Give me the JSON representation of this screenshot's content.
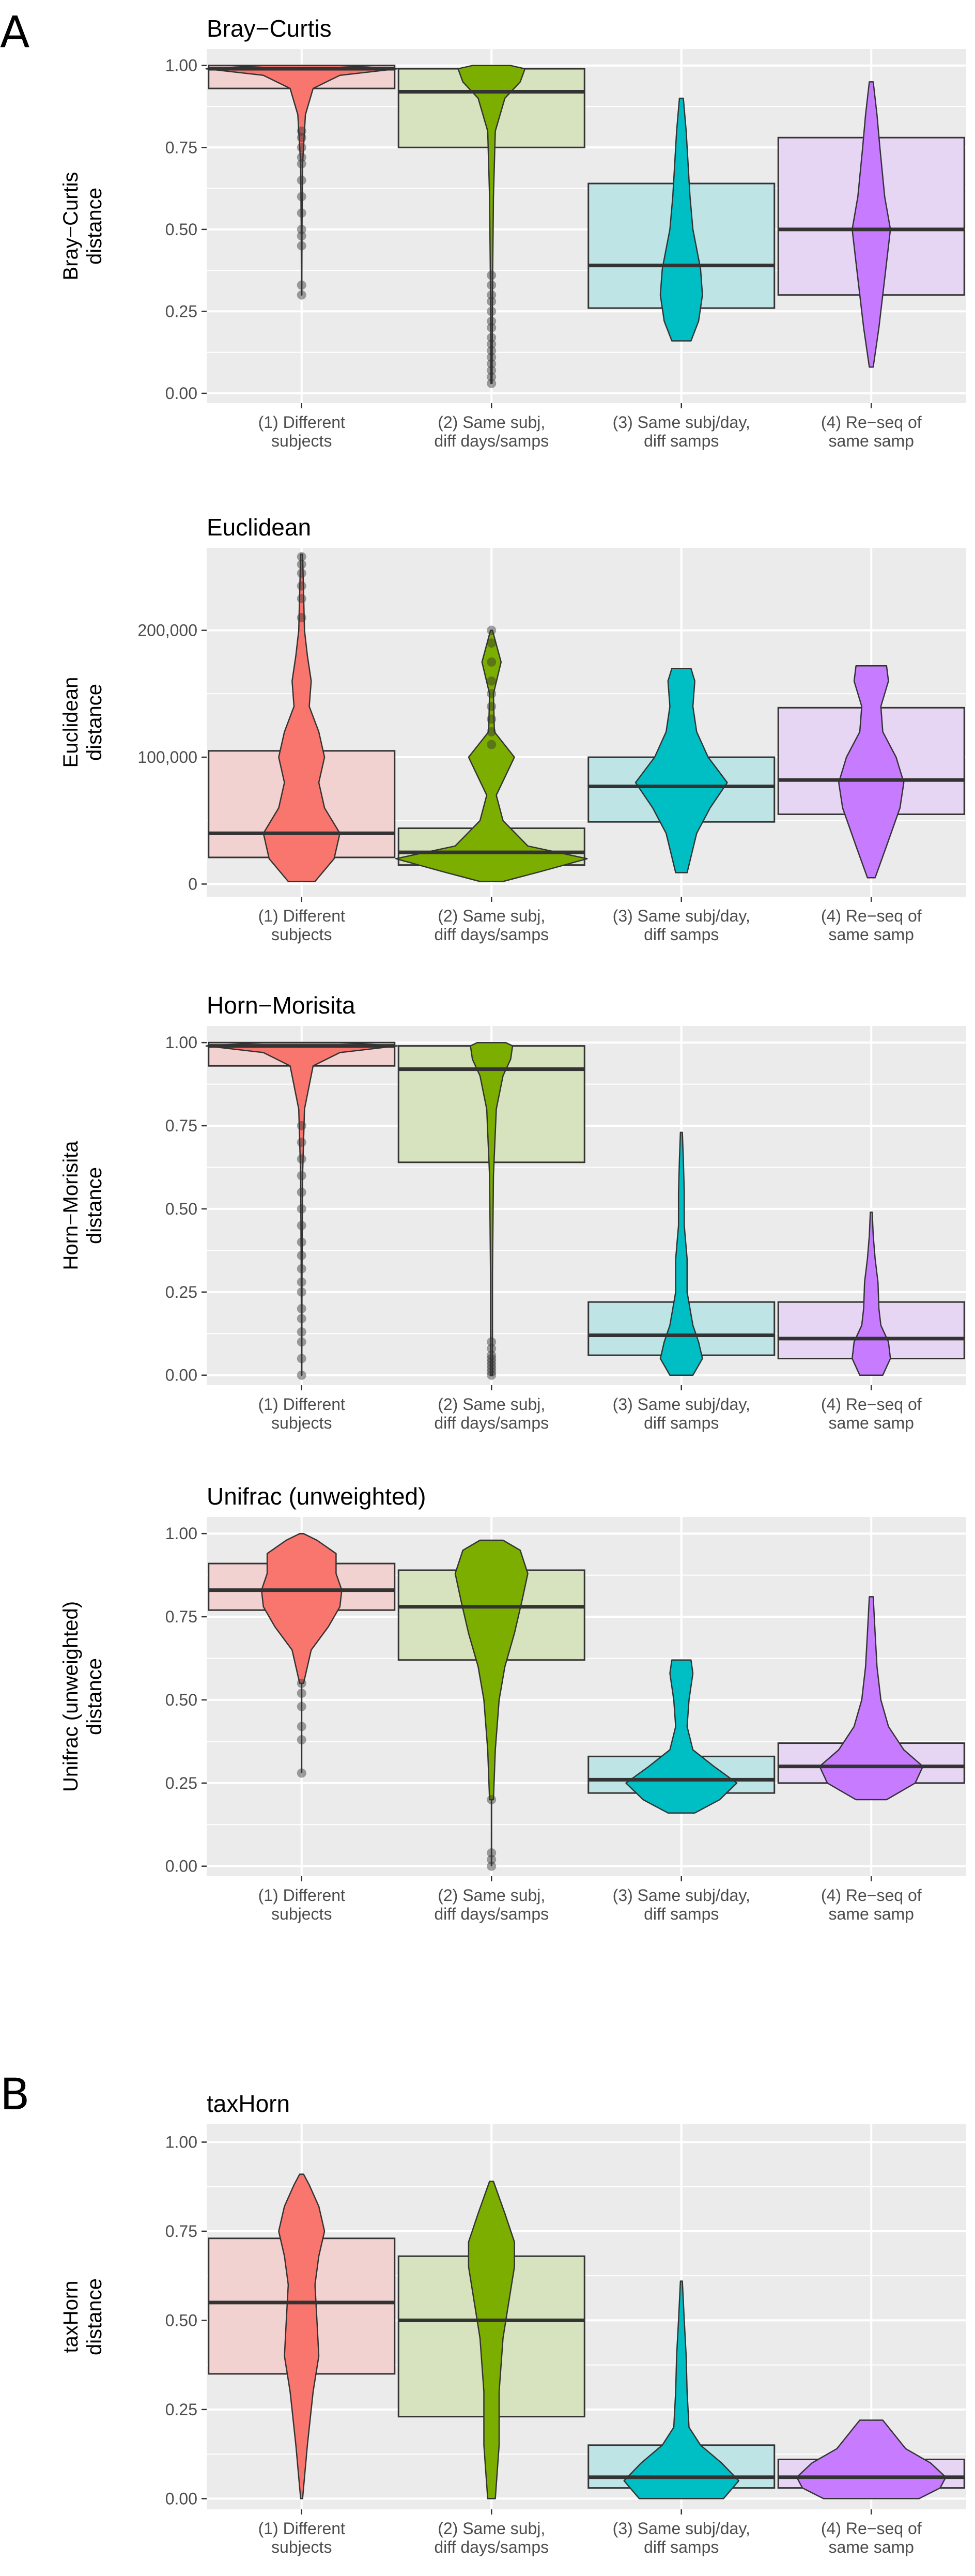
{
  "figure": {
    "panel_a_label": "A",
    "panel_b_label": "B",
    "groups": [
      "(1) Different subjects",
      "(2) Same subj, diff days/samps",
      "(3) Same subj/day, diff samps",
      "(4) Re-seq of same samp"
    ],
    "group_colors": [
      "#F8766D",
      "#7CAE00",
      "#00BFC4",
      "#C77CFF"
    ],
    "box_fill_colors": [
      "#F2D2D1",
      "#D7E2BF",
      "#BFE4E6",
      "#E6D6F3"
    ],
    "panel_background": "#EBEBEB",
    "grid_color": "#FFFFFF"
  },
  "chart_data": [
    {
      "type": "violin+box",
      "panel": "A",
      "title": "Bray−Curtis",
      "ylabel": "Bray−Curtis distance",
      "ylim": [
        -0.03,
        1.05
      ],
      "yticks": [
        0,
        0.25,
        0.5,
        0.75,
        1.0
      ],
      "yticklabels": [
        "0.00",
        "0.25",
        "0.50",
        "0.75",
        "1.00"
      ],
      "categories": [
        "(1) Different subjects",
        "(2) Same subj, diff days/samps",
        "(3) Same subj/day, diff samps",
        "(4) Re-seq of same samp"
      ],
      "boxes": [
        {
          "q1": 0.93,
          "median": 0.99,
          "q3": 1.0,
          "lo": 0.3,
          "hi": 1.0
        },
        {
          "q1": 0.75,
          "median": 0.92,
          "q3": 0.99,
          "lo": 0.03,
          "hi": 1.0
        },
        {
          "q1": 0.26,
          "median": 0.39,
          "q3": 0.64,
          "lo": 0.16,
          "hi": 0.9
        },
        {
          "q1": 0.3,
          "median": 0.5,
          "q3": 0.78,
          "lo": 0.08,
          "hi": 0.95
        }
      ],
      "violins": [
        [
          [
            0.3,
            0.002
          ],
          [
            0.5,
            0.004
          ],
          [
            0.7,
            0.01
          ],
          [
            0.85,
            0.04
          ],
          [
            0.93,
            0.12
          ],
          [
            0.97,
            0.4
          ],
          [
            0.99,
            1.0
          ],
          [
            1.0,
            0.4
          ]
        ],
        [
          [
            0.03,
            0.005
          ],
          [
            0.3,
            0.01
          ],
          [
            0.6,
            0.02
          ],
          [
            0.8,
            0.04
          ],
          [
            0.9,
            0.14
          ],
          [
            0.95,
            0.3
          ],
          [
            0.99,
            0.35
          ],
          [
            1.0,
            0.2
          ]
        ],
        [
          [
            0.16,
            0.1
          ],
          [
            0.22,
            0.18
          ],
          [
            0.3,
            0.22
          ],
          [
            0.38,
            0.2
          ],
          [
            0.5,
            0.12
          ],
          [
            0.6,
            0.09
          ],
          [
            0.7,
            0.07
          ],
          [
            0.8,
            0.05
          ],
          [
            0.9,
            0.02
          ]
        ],
        [
          [
            0.08,
            0.02
          ],
          [
            0.2,
            0.08
          ],
          [
            0.35,
            0.14
          ],
          [
            0.5,
            0.2
          ],
          [
            0.6,
            0.14
          ],
          [
            0.75,
            0.09
          ],
          [
            0.85,
            0.06
          ],
          [
            0.95,
            0.02
          ]
        ]
      ],
      "outliers": [
        [
          0.3,
          0.33,
          0.45,
          0.48,
          0.5,
          0.55,
          0.6,
          0.65,
          0.7,
          0.72,
          0.75,
          0.78,
          0.8
        ],
        [
          0.03,
          0.05,
          0.07,
          0.09,
          0.11,
          0.13,
          0.15,
          0.17,
          0.2,
          0.22,
          0.25,
          0.28,
          0.3,
          0.33,
          0.36
        ]
      ]
    },
    {
      "type": "violin+box",
      "panel": "A",
      "title": "Euclidean",
      "ylabel": "Euclidean distance",
      "ylim": [
        -10000,
        265000
      ],
      "yticks": [
        0,
        100000,
        200000
      ],
      "yticklabels": [
        "0",
        "100,000",
        "200,000"
      ],
      "categories": [
        "(1) Different subjects",
        "(2) Same subj, diff days/samps",
        "(3) Same subj/day, diff samps",
        "(4) Re-seq of same samp"
      ],
      "boxes": [
        {
          "q1": 21000,
          "median": 40000,
          "q3": 105000,
          "lo": 2000,
          "hi": 260000
        },
        {
          "q1": 15000,
          "median": 25000,
          "q3": 44000,
          "lo": 2000,
          "hi": 200000
        },
        {
          "q1": 49000,
          "median": 77000,
          "q3": 100000,
          "lo": 9000,
          "hi": 170000
        },
        {
          "q1": 55000,
          "median": 82000,
          "q3": 139000,
          "lo": 5000,
          "hi": 172000
        }
      ],
      "violins": [
        [
          [
            2000,
            0.14
          ],
          [
            20000,
            0.34
          ],
          [
            40000,
            0.4
          ],
          [
            60000,
            0.24
          ],
          [
            80000,
            0.18
          ],
          [
            100000,
            0.24
          ],
          [
            120000,
            0.18
          ],
          [
            140000,
            0.08
          ],
          [
            160000,
            0.1
          ],
          [
            180000,
            0.06
          ],
          [
            200000,
            0.03
          ],
          [
            230000,
            0.02
          ],
          [
            260000,
            0.01
          ]
        ],
        [
          [
            2000,
            0.12
          ],
          [
            10000,
            0.52
          ],
          [
            20000,
            1.0
          ],
          [
            30000,
            0.38
          ],
          [
            50000,
            0.12
          ],
          [
            70000,
            0.05
          ],
          [
            100000,
            0.24
          ],
          [
            120000,
            0.03
          ],
          [
            150000,
            0.02
          ],
          [
            175000,
            0.1
          ],
          [
            200000,
            0.01
          ]
        ],
        [
          [
            9000,
            0.06
          ],
          [
            40000,
            0.16
          ],
          [
            60000,
            0.3
          ],
          [
            80000,
            0.48
          ],
          [
            100000,
            0.28
          ],
          [
            120000,
            0.16
          ],
          [
            140000,
            0.12
          ],
          [
            160000,
            0.14
          ],
          [
            170000,
            0.1
          ]
        ],
        [
          [
            5000,
            0.04
          ],
          [
            30000,
            0.16
          ],
          [
            60000,
            0.3
          ],
          [
            80000,
            0.34
          ],
          [
            100000,
            0.26
          ],
          [
            120000,
            0.12
          ],
          [
            140000,
            0.1
          ],
          [
            160000,
            0.18
          ],
          [
            172000,
            0.16
          ]
        ]
      ],
      "outliers": [
        [
          210000,
          225000,
          235000,
          245000,
          252000,
          258000
        ],
        [
          110000,
          120000,
          130000,
          140000,
          150000,
          160000,
          175000,
          190000,
          200000
        ]
      ]
    },
    {
      "type": "violin+box",
      "panel": "A",
      "title": "Horn−Morisita",
      "ylabel": "Horn−Morisita distance",
      "ylim": [
        -0.03,
        1.05
      ],
      "yticks": [
        0,
        0.25,
        0.5,
        0.75,
        1.0
      ],
      "yticklabels": [
        "0.00",
        "0.25",
        "0.50",
        "0.75",
        "1.00"
      ],
      "categories": [
        "(1) Different subjects",
        "(2) Same subj, diff days/samps",
        "(3) Same subj/day, diff samps",
        "(4) Re-seq of same samp"
      ],
      "boxes": [
        {
          "q1": 0.93,
          "median": 0.99,
          "q3": 1.0,
          "lo": 0.0,
          "hi": 1.0
        },
        {
          "q1": 0.64,
          "median": 0.92,
          "q3": 0.99,
          "lo": 0.0,
          "hi": 1.0
        },
        {
          "q1": 0.06,
          "median": 0.12,
          "q3": 0.22,
          "lo": 0.0,
          "hi": 0.73
        },
        {
          "q1": 0.05,
          "median": 0.11,
          "q3": 0.22,
          "lo": 0.0,
          "hi": 0.49
        }
      ],
      "violins": [
        [
          [
            0.0,
            0.002
          ],
          [
            0.3,
            0.004
          ],
          [
            0.6,
            0.01
          ],
          [
            0.8,
            0.03
          ],
          [
            0.93,
            0.12
          ],
          [
            0.97,
            0.4
          ],
          [
            0.99,
            1.0
          ],
          [
            1.0,
            0.4
          ]
        ],
        [
          [
            0.0,
            0.01
          ],
          [
            0.3,
            0.01
          ],
          [
            0.6,
            0.02
          ],
          [
            0.8,
            0.05
          ],
          [
            0.9,
            0.12
          ],
          [
            0.95,
            0.2
          ],
          [
            0.99,
            0.22
          ],
          [
            1.0,
            0.15
          ]
        ],
        [
          [
            0.0,
            0.12
          ],
          [
            0.05,
            0.22
          ],
          [
            0.1,
            0.18
          ],
          [
            0.15,
            0.12
          ],
          [
            0.25,
            0.06
          ],
          [
            0.35,
            0.06
          ],
          [
            0.45,
            0.03
          ],
          [
            0.55,
            0.03
          ],
          [
            0.65,
            0.02
          ],
          [
            0.73,
            0.01
          ]
        ],
        [
          [
            0.0,
            0.12
          ],
          [
            0.05,
            0.2
          ],
          [
            0.1,
            0.18
          ],
          [
            0.15,
            0.1
          ],
          [
            0.2,
            0.08
          ],
          [
            0.28,
            0.07
          ],
          [
            0.35,
            0.04
          ],
          [
            0.42,
            0.02
          ],
          [
            0.49,
            0.01
          ]
        ]
      ],
      "outliers": [
        [
          0.0,
          0.05,
          0.1,
          0.13,
          0.17,
          0.2,
          0.25,
          0.28,
          0.32,
          0.36,
          0.4,
          0.45,
          0.5,
          0.55,
          0.6,
          0.65,
          0.7,
          0.75
        ],
        [
          0.0,
          0.01,
          0.02,
          0.03,
          0.04,
          0.05,
          0.06,
          0.08,
          0.1
        ]
      ]
    },
    {
      "type": "violin+box",
      "panel": "A",
      "title": "Unifrac (unweighted)",
      "ylabel": "Unifrac (unweighted) distance",
      "ylim": [
        -0.03,
        1.05
      ],
      "yticks": [
        0,
        0.25,
        0.5,
        0.75,
        1.0
      ],
      "yticklabels": [
        "0.00",
        "0.25",
        "0.50",
        "0.75",
        "1.00"
      ],
      "categories": [
        "(1) Different subjects",
        "(2) Same subj, diff days/samps",
        "(3) Same subj/day, diff samps",
        "(4) Re-seq of same samp"
      ],
      "boxes": [
        {
          "q1": 0.77,
          "median": 0.83,
          "q3": 0.91,
          "lo": 0.28,
          "hi": 1.0
        },
        {
          "q1": 0.62,
          "median": 0.78,
          "q3": 0.89,
          "lo": 0.0,
          "hi": 0.98
        },
        {
          "q1": 0.22,
          "median": 0.26,
          "q3": 0.33,
          "lo": 0.16,
          "hi": 0.62
        },
        {
          "q1": 0.25,
          "median": 0.3,
          "q3": 0.37,
          "lo": 0.2,
          "hi": 0.81
        }
      ],
      "violins": [
        [
          [
            0.55,
            0.02
          ],
          [
            0.65,
            0.1
          ],
          [
            0.72,
            0.28
          ],
          [
            0.78,
            0.4
          ],
          [
            0.83,
            0.42
          ],
          [
            0.88,
            0.36
          ],
          [
            0.94,
            0.36
          ],
          [
            0.98,
            0.16
          ],
          [
            1.0,
            0.02
          ]
        ],
        [
          [
            0.2,
            0.02
          ],
          [
            0.35,
            0.04
          ],
          [
            0.5,
            0.08
          ],
          [
            0.6,
            0.14
          ],
          [
            0.7,
            0.24
          ],
          [
            0.8,
            0.32
          ],
          [
            0.88,
            0.38
          ],
          [
            0.95,
            0.3
          ],
          [
            0.98,
            0.12
          ]
        ],
        [
          [
            0.16,
            0.14
          ],
          [
            0.2,
            0.4
          ],
          [
            0.25,
            0.58
          ],
          [
            0.3,
            0.34
          ],
          [
            0.35,
            0.12
          ],
          [
            0.42,
            0.06
          ],
          [
            0.5,
            0.08
          ],
          [
            0.58,
            0.12
          ],
          [
            0.62,
            0.1
          ]
        ],
        [
          [
            0.2,
            0.16
          ],
          [
            0.25,
            0.46
          ],
          [
            0.3,
            0.54
          ],
          [
            0.35,
            0.34
          ],
          [
            0.42,
            0.18
          ],
          [
            0.5,
            0.1
          ],
          [
            0.6,
            0.06
          ],
          [
            0.7,
            0.04
          ],
          [
            0.81,
            0.02
          ]
        ]
      ],
      "outliers": [
        [
          0.28,
          0.38,
          0.42,
          0.48,
          0.52,
          0.55
        ],
        [
          0.0,
          0.02,
          0.04,
          0.2
        ]
      ]
    },
    {
      "type": "violin+box",
      "panel": "B",
      "title": "taxHorn",
      "ylabel": "taxHorn distance",
      "ylim": [
        -0.03,
        1.05
      ],
      "yticks": [
        0,
        0.25,
        0.5,
        0.75,
        1.0
      ],
      "yticklabels": [
        "0.00",
        "0.25",
        "0.50",
        "0.75",
        "1.00"
      ],
      "categories": [
        "(1) Different subjects",
        "(2) Same subj, diff days/samps",
        "(3) Same subj/day, diff samps",
        "(4) Re-seq of same samp"
      ],
      "boxes": [
        {
          "q1": 0.35,
          "median": 0.55,
          "q3": 0.73,
          "lo": 0.0,
          "hi": 0.91
        },
        {
          "q1": 0.23,
          "median": 0.5,
          "q3": 0.68,
          "lo": 0.0,
          "hi": 0.89
        },
        {
          "q1": 0.03,
          "median": 0.06,
          "q3": 0.15,
          "lo": 0.0,
          "hi": 0.61
        },
        {
          "q1": 0.03,
          "median": 0.06,
          "q3": 0.11,
          "lo": 0.0,
          "hi": 0.22
        }
      ],
      "violins": [
        [
          [
            0.0,
            0.01
          ],
          [
            0.15,
            0.06
          ],
          [
            0.3,
            0.12
          ],
          [
            0.4,
            0.18
          ],
          [
            0.5,
            0.16
          ],
          [
            0.6,
            0.14
          ],
          [
            0.68,
            0.18
          ],
          [
            0.75,
            0.24
          ],
          [
            0.82,
            0.18
          ],
          [
            0.88,
            0.08
          ],
          [
            0.91,
            0.02
          ]
        ],
        [
          [
            0.0,
            0.04
          ],
          [
            0.15,
            0.08
          ],
          [
            0.3,
            0.08
          ],
          [
            0.45,
            0.12
          ],
          [
            0.55,
            0.18
          ],
          [
            0.65,
            0.24
          ],
          [
            0.72,
            0.24
          ],
          [
            0.8,
            0.14
          ],
          [
            0.89,
            0.02
          ]
        ],
        [
          [
            0.0,
            0.44
          ],
          [
            0.05,
            0.6
          ],
          [
            0.1,
            0.42
          ],
          [
            0.15,
            0.2
          ],
          [
            0.2,
            0.08
          ],
          [
            0.3,
            0.06
          ],
          [
            0.4,
            0.05
          ],
          [
            0.5,
            0.03
          ],
          [
            0.61,
            0.01
          ]
        ],
        [
          [
            0.0,
            0.5
          ],
          [
            0.03,
            0.72
          ],
          [
            0.06,
            0.78
          ],
          [
            0.1,
            0.62
          ],
          [
            0.14,
            0.36
          ],
          [
            0.18,
            0.24
          ],
          [
            0.22,
            0.12
          ]
        ]
      ],
      "outliers": [
        [],
        []
      ]
    }
  ]
}
